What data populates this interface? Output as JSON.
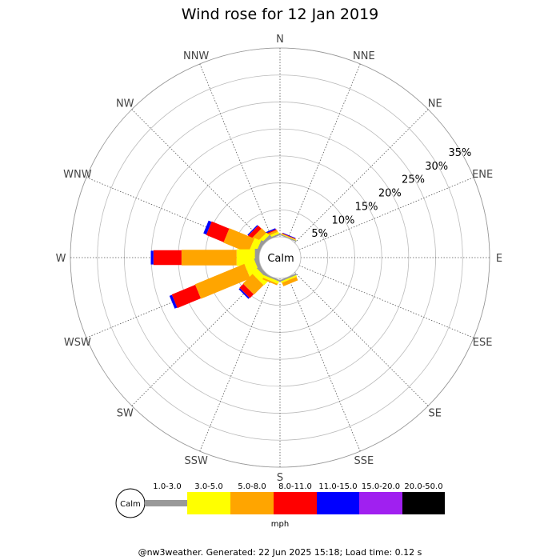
{
  "chart_data": {
    "type": "windrose",
    "title": "Wind rose for 12 Jan 2019",
    "directions": [
      "N",
      "NNE",
      "NE",
      "ENE",
      "E",
      "ESE",
      "SE",
      "SSE",
      "S",
      "SSW",
      "SW",
      "WSW",
      "W",
      "WNW",
      "NW",
      "NNW"
    ],
    "radial_ticks": [
      "5%",
      "10%",
      "15%",
      "20%",
      "25%",
      "30%",
      "35%"
    ],
    "radial_max_percent": 35,
    "calm_label": "Calm",
    "unit": "mph",
    "speed_bins": [
      {
        "label": "1.0-3.0",
        "color": "#999999"
      },
      {
        "label": "3.0-5.0",
        "color": "#ffff00"
      },
      {
        "label": "5.0-8.0",
        "color": "#ffa500"
      },
      {
        "label": "8.0-11.0",
        "color": "#ff0000"
      },
      {
        "label": "11.0-15.0",
        "color": "#0000ff"
      },
      {
        "label": "15.0-20.0",
        "color": "#a020f0"
      },
      {
        "label": "20.0-50.0",
        "color": "#000000"
      }
    ],
    "series": [
      {
        "direction": "NNW",
        "values": [
          0.3,
          0.4,
          0.4,
          0.2,
          0.2,
          0,
          0
        ]
      },
      {
        "direction": "NW",
        "values": [
          0.5,
          0.7,
          1.2,
          0.8,
          0.2,
          0,
          0
        ]
      },
      {
        "direction": "WNW",
        "values": [
          0.6,
          1.3,
          5.0,
          3.5,
          0.6,
          0,
          0
        ]
      },
      {
        "direction": "W",
        "values": [
          0.8,
          3.4,
          10.2,
          5.2,
          0.5,
          0,
          0
        ]
      },
      {
        "direction": "WSW",
        "values": [
          0.7,
          2.0,
          9.9,
          4.7,
          0.5,
          0,
          0
        ]
      },
      {
        "direction": "SW",
        "values": [
          0.6,
          1.3,
          2.5,
          1.0,
          0.3,
          0,
          0
        ]
      },
      {
        "direction": "SSW",
        "values": [
          0.3,
          0.5,
          0.3,
          0,
          0,
          0,
          0
        ]
      },
      {
        "direction": "SSE",
        "values": [
          0.3,
          0.3,
          0.7,
          0,
          0,
          0,
          0
        ]
      },
      {
        "direction": "NNE",
        "values": [
          0.2,
          0.1,
          0.1,
          0.1,
          0.1,
          0,
          0
        ]
      }
    ]
  },
  "footer": "@nw3weather. Generated: 22 Jun 2025 15:18; Load time: 0.12 s"
}
